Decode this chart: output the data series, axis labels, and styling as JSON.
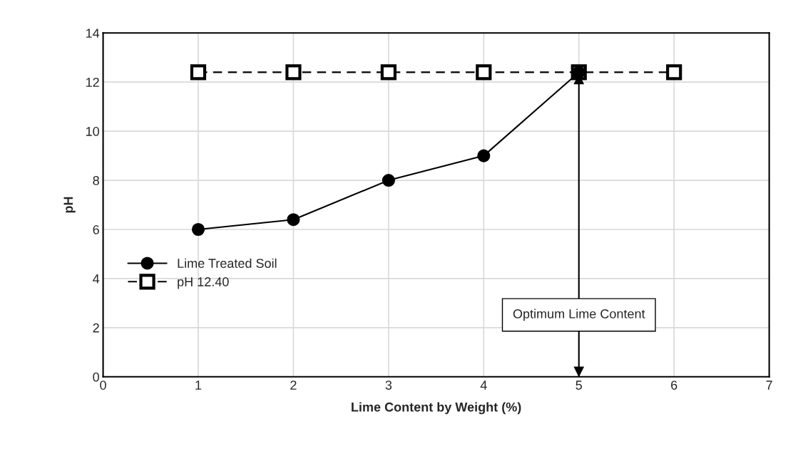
{
  "chart_data": {
    "type": "line",
    "xlabel": "Lime Content by Weight (%)",
    "ylabel": "pH",
    "x": [
      1,
      2,
      3,
      4,
      5,
      6
    ],
    "series": [
      {
        "name": "Lime Treated Soil",
        "color": "#000000",
        "values": [
          6.0,
          6.4,
          8.0,
          9.0,
          12.4,
          null
        ],
        "marker": "circle",
        "line_style": "solid"
      },
      {
        "name": "pH 12.40",
        "color": "#000000",
        "values": [
          12.4,
          12.4,
          12.4,
          12.4,
          12.4,
          12.4
        ],
        "marker": "square",
        "line_style": "dashed"
      }
    ],
    "xlim": [
      0,
      7
    ],
    "xticks": [
      0,
      1,
      2,
      3,
      4,
      5,
      6,
      7
    ],
    "ylim": [
      0,
      14
    ],
    "yticks": [
      0,
      2,
      4,
      6,
      8,
      10,
      12,
      14
    ],
    "grid": true,
    "legend": "left",
    "ref_lines": [
      {
        "axis": "x",
        "value": 5,
        "label": "Optimum Lime Content",
        "color": "#000000"
      }
    ]
  }
}
